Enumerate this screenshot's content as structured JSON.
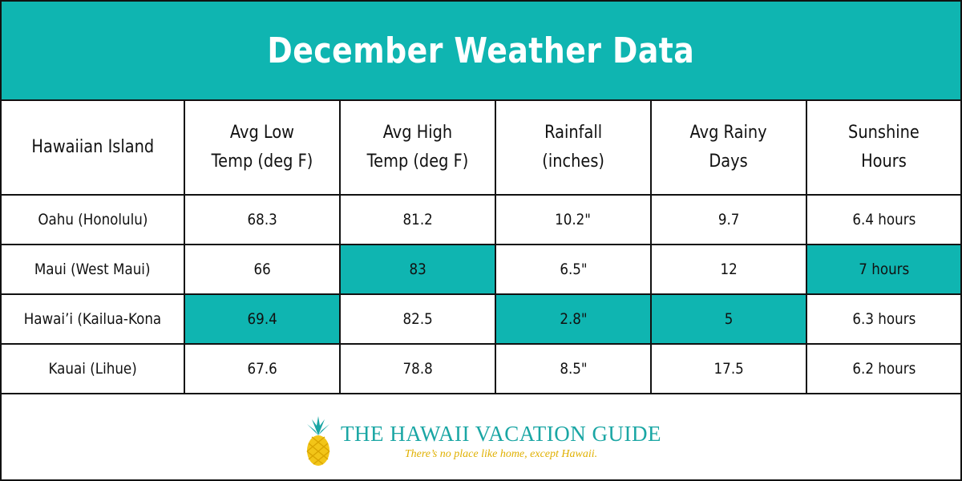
{
  "title": "December Weather Data",
  "colors": {
    "accent": "#0fb5b1",
    "tagline": "#e0b000",
    "border": "#111111"
  },
  "table": {
    "headers": [
      "Hawaiian Island",
      "Avg Low\nTemp (deg F)",
      "Avg High\nTemp (deg F)",
      "Rainfall\n(inches)",
      "Avg Rainy\nDays",
      "Sunshine\nHours"
    ],
    "rows": [
      {
        "island": "Oahu (Honolulu)",
        "low": "68.3",
        "high": "81.2",
        "rain": "10.2\"",
        "days": "9.7",
        "sun": "6.4 hours"
      },
      {
        "island": "Maui (West Maui)",
        "low": "66",
        "high": "83",
        "rain": "6.5\"",
        "days": "12",
        "sun": "7 hours"
      },
      {
        "island": "Hawai’i (Kailua-Kona",
        "low": "69.4",
        "high": "82.5",
        "rain": "2.8\"",
        "days": "5",
        "sun": "6.3 hours"
      },
      {
        "island": "Kauai (Lihue)",
        "low": "67.6",
        "high": "78.8",
        "rain": "8.5\"",
        "days": "17.5",
        "sun": "6.2 hours"
      }
    ],
    "highlighted_cells": [
      {
        "row": 1,
        "column": "high"
      },
      {
        "row": 1,
        "column": "sun"
      },
      {
        "row": 2,
        "column": "low"
      },
      {
        "row": 2,
        "column": "rain"
      },
      {
        "row": 2,
        "column": "days"
      }
    ]
  },
  "footer": {
    "logo_icon": "pineapple-icon",
    "brand": "THE HAWAII VACATION GUIDE",
    "tagline": "There’s no place like home, except Hawaii."
  }
}
